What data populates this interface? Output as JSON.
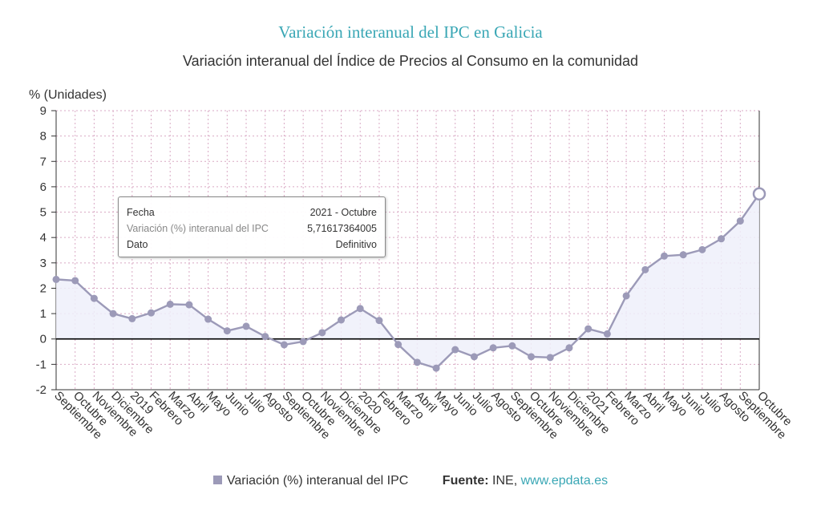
{
  "title": "Variación interanual del IPC en Galicia",
  "subtitle": "Variación interanual del Índice de Precios al Consumo en la comunidad",
  "tooltip": {
    "rows": [
      {
        "label": "Fecha",
        "value": "2021 - Octubre"
      },
      {
        "label": "Variación (%) interanual del IPC",
        "value": "5,71617364005"
      },
      {
        "label": "Dato",
        "value": "Definitivo"
      }
    ]
  },
  "legend": {
    "series_label": "Variación (%) interanual del IPC",
    "source_label": "Fuente:",
    "source_text": "INE,",
    "source_link": "www.epdata.es"
  },
  "colors": {
    "line": "#9c9ab8",
    "area": "#eef0fa",
    "title": "#3aa7b5",
    "grid": "#d9a9c4",
    "zero_line": "#000000"
  },
  "chart_data": {
    "type": "area",
    "ylabel": "% (Unidades)",
    "ylim": [
      -2,
      9
    ],
    "yticks": [
      -2,
      -1,
      0,
      1,
      2,
      3,
      4,
      5,
      6,
      7,
      8,
      9
    ],
    "grid": true,
    "categories": [
      "Septiembre",
      "Octubre",
      "Noviembre",
      "Diciembre",
      "2019",
      "Febrero",
      "Marzo",
      "Abril",
      "Mayo",
      "Junio",
      "Julio",
      "Agosto",
      "Septiembre",
      "Octubre",
      "Noviembre",
      "Diciembre",
      "2020",
      "Febrero",
      "Marzo",
      "Abril",
      "Mayo",
      "Junio",
      "Julio",
      "Agosto",
      "Septiembre",
      "Octubre",
      "Noviembre",
      "Diciembre",
      "2021",
      "Febrero",
      "Marzo",
      "Abril",
      "Mayo",
      "Junio",
      "Julio",
      "Agosto",
      "Septiembre",
      "Octubre"
    ],
    "series": [
      {
        "name": "Variación (%) interanual del IPC",
        "values": [
          2.35,
          2.3,
          1.6,
          1.0,
          0.8,
          1.03,
          1.37,
          1.35,
          0.78,
          0.32,
          0.5,
          0.1,
          -0.23,
          -0.1,
          0.25,
          0.75,
          1.2,
          0.73,
          -0.22,
          -0.92,
          -1.15,
          -0.42,
          -0.7,
          -0.35,
          -0.27,
          -0.7,
          -0.73,
          -0.35,
          0.4,
          0.2,
          1.7,
          2.73,
          3.27,
          3.32,
          3.52,
          3.95,
          4.65,
          5.72
        ]
      }
    ],
    "highlight_index": 37
  }
}
